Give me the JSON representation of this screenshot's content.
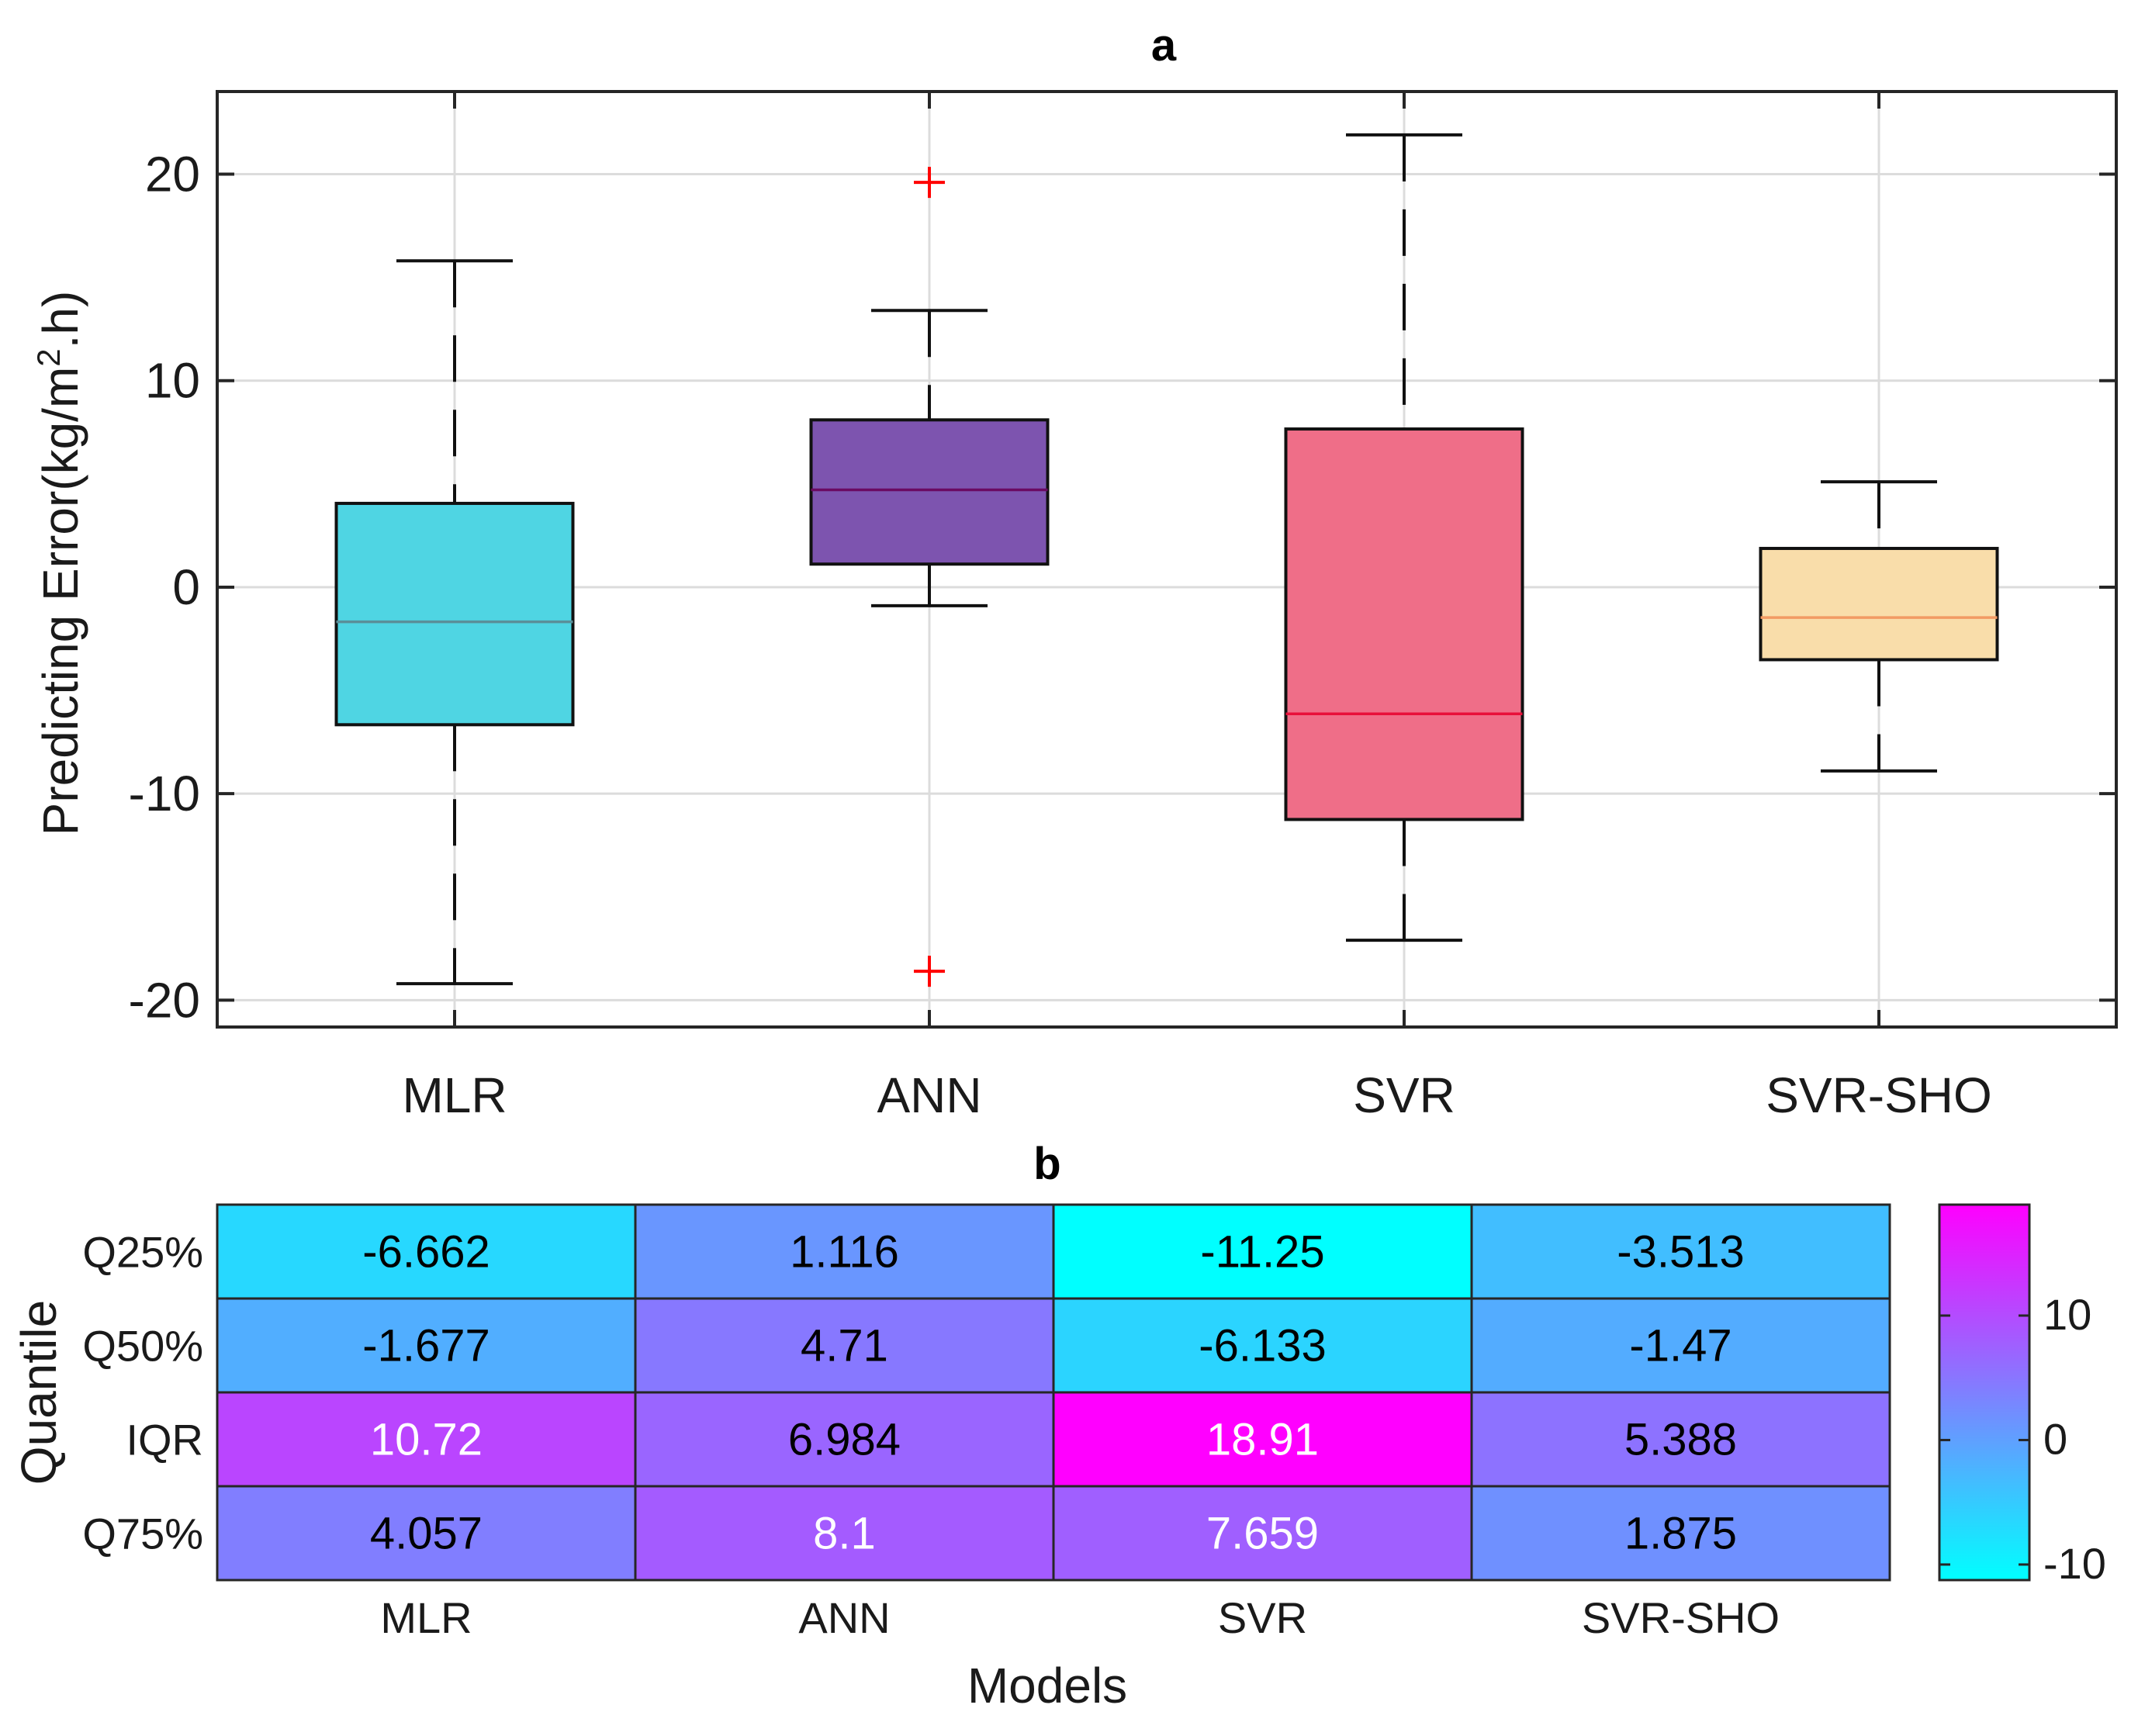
{
  "chart_data": [
    {
      "type": "box",
      "title": "a",
      "ylabel": "Predicting Error(kg/m",
      "ylabel_sup": "2",
      "ylabel_tail": ".h)",
      "ylim": [
        -21.3,
        24
      ],
      "yticks": [
        -20,
        -10,
        0,
        10,
        20
      ],
      "ytick_labels": [
        "-20",
        "-10",
        "0",
        "10",
        "20"
      ],
      "grid": true,
      "categories": [
        "MLR",
        "ANN",
        "SVR",
        "SVR-SHO"
      ],
      "boxes": [
        {
          "name": "MLR",
          "q1": -6.662,
          "median": -1.677,
          "q3": 4.057,
          "whisker_low": -19.2,
          "whisker_high": 15.8,
          "outliers": [],
          "color": "#4fd5e3",
          "median_color": "#5a8f99"
        },
        {
          "name": "ANN",
          "q1": 1.116,
          "median": 4.71,
          "q3": 8.1,
          "whisker_low": -0.9,
          "whisker_high": 13.4,
          "outliers": [
            19.6,
            -18.6
          ],
          "color": "#7d54af",
          "median_color": "#6b0a62"
        },
        {
          "name": "SVR",
          "q1": -11.25,
          "median": -6.133,
          "q3": 7.659,
          "whisker_low": -17.1,
          "whisker_high": 21.9,
          "outliers": [],
          "color": "#ef6e88",
          "median_color": "#e8103a"
        },
        {
          "name": "SVR-SHO",
          "q1": -3.513,
          "median": -1.47,
          "q3": 1.875,
          "whisker_low": -8.9,
          "whisker_high": 5.1,
          "outliers": [],
          "color": "#f9ddaa",
          "median_color": "#f29a63"
        }
      ],
      "outlier_color": "#ff0000"
    },
    {
      "type": "heatmap",
      "title": "b",
      "xlabel": "Models",
      "ylabel": "Quantile",
      "columns": [
        "MLR",
        "ANN",
        "SVR",
        "SVR-SHO"
      ],
      "rows": [
        "Q25%",
        "Q50%",
        "IQR",
        "Q75%"
      ],
      "values": [
        [
          -6.662,
          1.116,
          -11.25,
          -3.513
        ],
        [
          -1.677,
          4.71,
          -6.133,
          -1.47
        ],
        [
          10.72,
          6.984,
          18.91,
          5.388
        ],
        [
          4.057,
          8.1,
          7.659,
          1.875
        ]
      ],
      "cell_labels": [
        [
          "-6.662",
          "1.116",
          "-11.25",
          "-3.513"
        ],
        [
          "-1.677",
          "4.71",
          "-6.133",
          "-1.47"
        ],
        [
          "10.72",
          "6.984",
          "18.91",
          "5.388"
        ],
        [
          "4.057",
          "8.1",
          "7.659",
          "1.875"
        ]
      ],
      "colormap": "cool",
      "clim": [
        -11.25,
        18.91
      ],
      "colorbar_ticks": [
        -10,
        0,
        10
      ],
      "colorbar_tick_labels": [
        "-10",
        "0",
        "10"
      ]
    }
  ]
}
